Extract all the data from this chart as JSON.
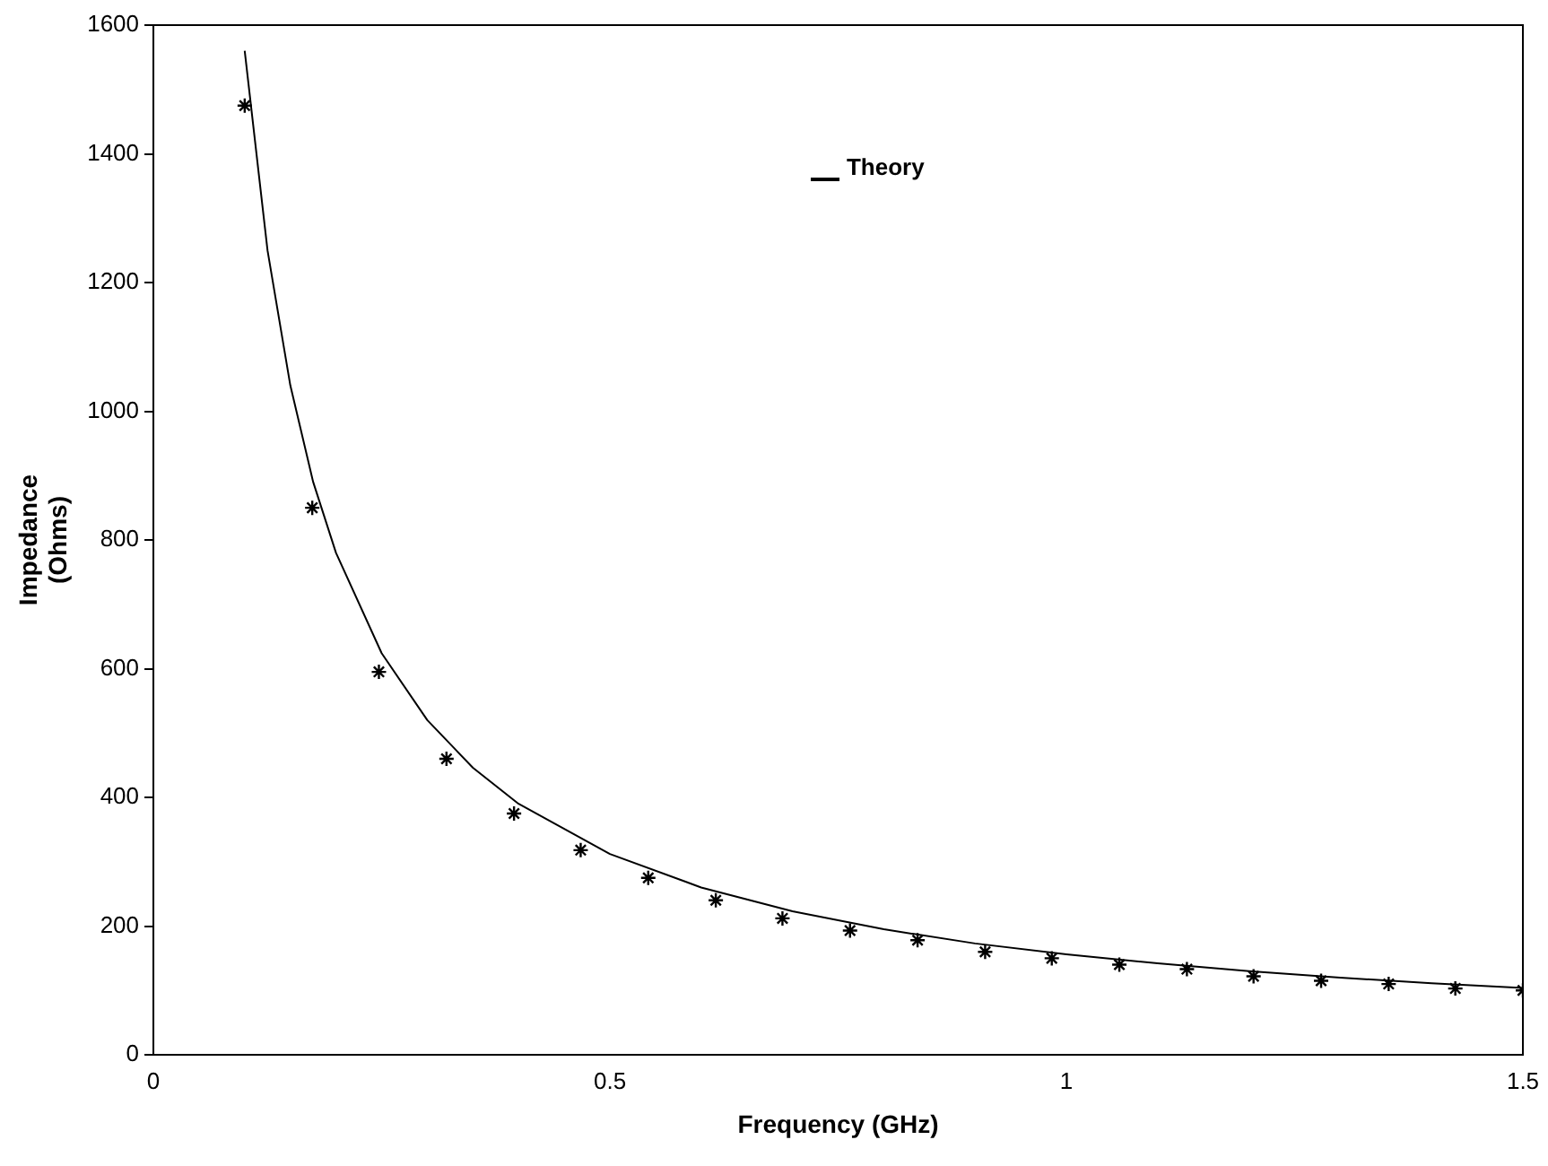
{
  "chart_data": {
    "type": "line",
    "xlabel": "Frequency (GHz)",
    "ylabel": "Impedance\n(Ohms)",
    "xlim": [
      0,
      1.5
    ],
    "xticks": [
      0,
      0.5,
      1,
      1.5
    ],
    "ylim": [
      0,
      1600
    ],
    "yticks": [
      0,
      200,
      400,
      600,
      800,
      1000,
      1200,
      1400,
      1600
    ],
    "grid": false,
    "legend": "top right",
    "series": [
      {
        "name": "Theory",
        "color": "#000000",
        "marker": "none",
        "line_style": "solid",
        "x": [
          0.1,
          0.125,
          0.15,
          0.175,
          0.2,
          0.25,
          0.3,
          0.35,
          0.4,
          0.5,
          0.6,
          0.7,
          0.8,
          0.9,
          1.0,
          1.1,
          1.2,
          1.3,
          1.4,
          1.5
        ],
        "values": [
          1560,
          1250,
          1040,
          890,
          780,
          624,
          520,
          446,
          390,
          312,
          260,
          223,
          195,
          173,
          156,
          142,
          130,
          120,
          111,
          104
        ]
      },
      {
        "type": "scatter",
        "color": "#000000",
        "x": [
          0.1,
          0.174,
          0.247,
          0.321,
          0.395,
          0.468,
          0.542,
          0.616,
          0.689,
          0.763,
          0.837,
          0.911,
          0.984,
          1.058,
          1.132,
          1.205,
          1.279,
          1.353,
          1.426,
          1.5
        ],
        "values": [
          1475,
          850,
          595,
          460,
          375,
          318,
          275,
          240,
          212,
          193,
          178,
          160,
          150,
          140,
          133,
          122,
          115,
          110,
          103,
          100
        ]
      }
    ]
  }
}
